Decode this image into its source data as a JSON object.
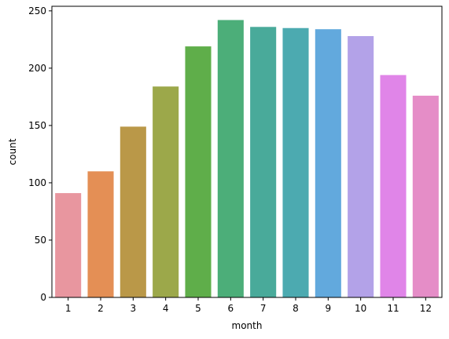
{
  "chart_data": {
    "type": "bar",
    "title": "",
    "xlabel": "month",
    "ylabel": "count",
    "categories": [
      "1",
      "2",
      "3",
      "4",
      "5",
      "6",
      "7",
      "8",
      "9",
      "10",
      "11",
      "12"
    ],
    "values": [
      91,
      110,
      149,
      184,
      219,
      242,
      236,
      235,
      234,
      228,
      194,
      176
    ],
    "ylim": [
      0,
      254
    ],
    "yticks": [
      0,
      50,
      100,
      150,
      200,
      250
    ],
    "grid": false,
    "legend": "none",
    "colors": [
      "#e8969f",
      "#e48f55",
      "#ba9848",
      "#9ca84a",
      "#5fae4a",
      "#4cae79",
      "#49aa9a",
      "#4caab0",
      "#62a9dd",
      "#b3a2e8",
      "#e085e8",
      "#e58dc7"
    ]
  }
}
